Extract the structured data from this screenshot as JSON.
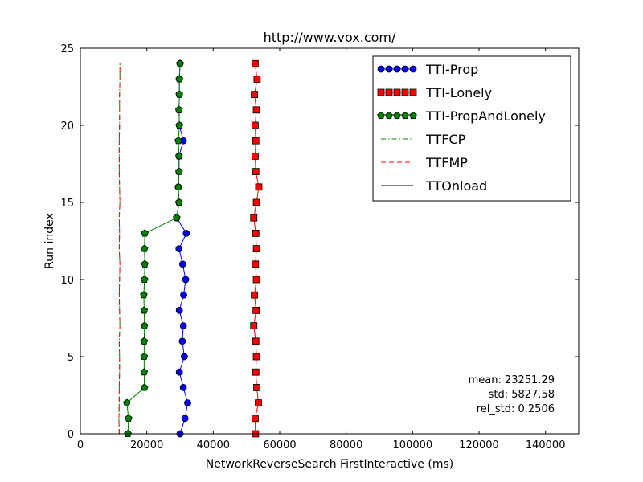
{
  "chart_data": {
    "type": "line",
    "title": "http://www.vox.com/",
    "xlabel": "NetworkReverseSearch FirstInteractive (ms)",
    "ylabel": "Run index",
    "xlim": [
      0,
      150000
    ],
    "ylim": [
      0,
      25
    ],
    "xticks": [
      0,
      20000,
      40000,
      60000,
      80000,
      100000,
      120000,
      140000
    ],
    "xtick_labels": [
      "0",
      "20000",
      "40000",
      "60000",
      "80000",
      "100000",
      "120000",
      "140000"
    ],
    "yticks": [
      0,
      5,
      10,
      15,
      20,
      25
    ],
    "ytick_labels": [
      "0",
      "5",
      "10",
      "15",
      "20",
      "25"
    ],
    "grid": false,
    "legend_position": "top-right",
    "series": [
      {
        "name": "TTI-Prop",
        "color": "#0000ff",
        "marker": "circle",
        "linestyle": "solid",
        "y": [
          0,
          1,
          2,
          3,
          4,
          5,
          6,
          7,
          8,
          9,
          10,
          11,
          12,
          13,
          14,
          15,
          16,
          17,
          18,
          19,
          20,
          21,
          22,
          23,
          24
        ],
        "x": [
          30000,
          31500,
          32300,
          31000,
          29800,
          31300,
          30700,
          31000,
          29800,
          31100,
          31700,
          30800,
          29700,
          31900,
          29000,
          29700,
          29500,
          29700,
          29700,
          31000,
          29800,
          29700,
          29800,
          29800,
          30000
        ]
      },
      {
        "name": "TTI-Lonely",
        "color": "#ff0000",
        "marker": "square",
        "linestyle": "solid",
        "y": [
          0,
          1,
          2,
          3,
          4,
          5,
          6,
          7,
          8,
          9,
          10,
          11,
          12,
          13,
          14,
          15,
          16,
          17,
          18,
          19,
          20,
          21,
          22,
          23,
          24
        ],
        "x": [
          52700,
          52600,
          53600,
          53100,
          52800,
          53000,
          52800,
          52200,
          52900,
          52400,
          53000,
          52700,
          53000,
          52800,
          52200,
          53000,
          53700,
          52800,
          52600,
          52800,
          52600,
          53000,
          52400,
          53200,
          52600
        ]
      },
      {
        "name": "TTI-PropAndLonely",
        "color": "#008000",
        "marker": "pentagon",
        "linestyle": "solid",
        "y": [
          0,
          1,
          2,
          3,
          4,
          5,
          6,
          7,
          8,
          9,
          10,
          11,
          12,
          13,
          14,
          15,
          16,
          17,
          18,
          19,
          20,
          21,
          22,
          23,
          24
        ],
        "x": [
          14300,
          14500,
          14000,
          19300,
          19200,
          19200,
          19200,
          19300,
          19200,
          19100,
          19300,
          19400,
          19300,
          19400,
          29000,
          29700,
          29500,
          29700,
          29700,
          29500,
          29800,
          29700,
          29800,
          29800,
          30000
        ]
      },
      {
        "name": "TTFCP",
        "color": "#008000",
        "marker": "none",
        "linestyle": "dashdot",
        "y": [
          0,
          1,
          2,
          3,
          4,
          5,
          6,
          7,
          8,
          9,
          10,
          11,
          12,
          13,
          14,
          15,
          16,
          17,
          18,
          19,
          20,
          21,
          22,
          23,
          24
        ],
        "x": [
          11700,
          11600,
          11700,
          11700,
          11800,
          11800,
          11700,
          11900,
          11800,
          11700,
          11800,
          11900,
          11700,
          11800,
          11700,
          11900,
          11800,
          11700,
          11700,
          11700,
          11800,
          11800,
          11800,
          11900,
          11900
        ]
      },
      {
        "name": "TTFMP",
        "color": "#ff0000",
        "marker": "none",
        "linestyle": "dashed",
        "y": [
          0,
          1,
          2,
          3,
          4,
          5,
          6,
          7,
          8,
          9,
          10,
          11,
          12,
          13,
          14,
          15,
          16,
          17,
          18,
          19,
          20,
          21,
          22,
          23,
          24
        ],
        "x": [
          11700,
          11600,
          11700,
          11700,
          11800,
          11800,
          11700,
          11900,
          11800,
          11700,
          11800,
          11900,
          11700,
          11800,
          11700,
          11900,
          11800,
          11700,
          11700,
          11700,
          11800,
          11800,
          11800,
          11900,
          11900
        ]
      },
      {
        "name": "TTOnload",
        "color": "#000000",
        "marker": "none",
        "linestyle": "solid",
        "y": [],
        "x": []
      }
    ],
    "annotations": {
      "mean": "mean: 23251.29",
      "std": "std: 5827.58",
      "rel_std": "rel_std: 0.2506"
    }
  }
}
